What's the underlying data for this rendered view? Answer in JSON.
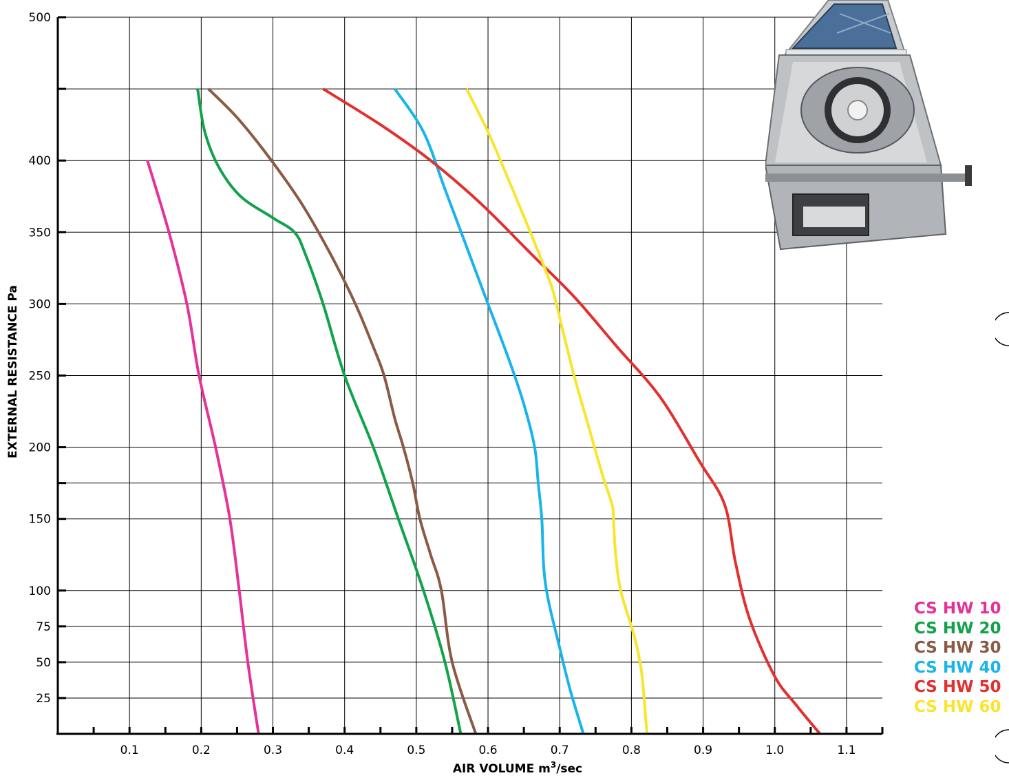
{
  "chart_data": {
    "type": "line",
    "title": "",
    "xlabel": "AIR VOLUME m",
    "xlabel_sup": "3",
    "xlabel_suffix": "/sec",
    "ylabel": "EXTERNAL RESISTANCE Pa",
    "xlim": [
      0.0,
      1.15
    ],
    "ylim": [
      0,
      500
    ],
    "grid": true,
    "x_ticks": [
      0.1,
      0.2,
      0.3,
      0.4,
      0.5,
      0.6,
      0.7,
      0.8,
      0.9,
      1.0,
      1.1
    ],
    "x_tick_labels": [
      "0.1",
      "0.2",
      "0.3",
      "0.4",
      "0.5",
      "0.6",
      "0.7",
      "0.8",
      "0.9",
      "1.0",
      "1.1"
    ],
    "y_ticks": [
      25,
      50,
      75,
      100,
      150,
      200,
      250,
      300,
      350,
      400,
      500
    ],
    "y_tick_labels": [
      "25",
      "50",
      "75",
      "100",
      "150",
      "200",
      "250",
      "300",
      "350",
      "400",
      "500"
    ],
    "legend_position": "bottom-right",
    "series": [
      {
        "name": "CS HW 10",
        "color": "#e5329a",
        "points": [
          [
            0.125,
            400
          ],
          [
            0.155,
            350
          ],
          [
            0.18,
            300
          ],
          [
            0.197,
            250
          ],
          [
            0.22,
            200
          ],
          [
            0.24,
            150
          ],
          [
            0.253,
            100
          ],
          [
            0.265,
            50
          ],
          [
            0.28,
            0
          ]
        ]
      },
      {
        "name": "CS HW 20",
        "color": "#10a34a",
        "points": [
          [
            0.195,
            450
          ],
          [
            0.205,
            420
          ],
          [
            0.225,
            395
          ],
          [
            0.255,
            375
          ],
          [
            0.3,
            360
          ],
          [
            0.33,
            350
          ],
          [
            0.345,
            335
          ],
          [
            0.37,
            300
          ],
          [
            0.4,
            250
          ],
          [
            0.44,
            200
          ],
          [
            0.475,
            150
          ],
          [
            0.51,
            100
          ],
          [
            0.54,
            50
          ],
          [
            0.562,
            0
          ]
        ]
      },
      {
        "name": "CS HW 30",
        "color": "#8a5a44",
        "points": [
          [
            0.21,
            450
          ],
          [
            0.25,
            430
          ],
          [
            0.295,
            402
          ],
          [
            0.34,
            370
          ],
          [
            0.38,
            335
          ],
          [
            0.415,
            300
          ],
          [
            0.44,
            270
          ],
          [
            0.455,
            250
          ],
          [
            0.47,
            220
          ],
          [
            0.482,
            200
          ],
          [
            0.495,
            175
          ],
          [
            0.505,
            150
          ],
          [
            0.52,
            125
          ],
          [
            0.535,
            100
          ],
          [
            0.55,
            50
          ],
          [
            0.583,
            0
          ]
        ]
      },
      {
        "name": "CS HW 40",
        "color": "#19b4ea",
        "points": [
          [
            0.47,
            450
          ],
          [
            0.51,
            420
          ],
          [
            0.54,
            380
          ],
          [
            0.57,
            340
          ],
          [
            0.6,
            300
          ],
          [
            0.63,
            260
          ],
          [
            0.65,
            230
          ],
          [
            0.665,
            200
          ],
          [
            0.67,
            175
          ],
          [
            0.675,
            150
          ],
          [
            0.68,
            105
          ],
          [
            0.7,
            60
          ],
          [
            0.715,
            30
          ],
          [
            0.733,
            0
          ]
        ]
      },
      {
        "name": "CS HW 50",
        "color": "#e2302e",
        "points": [
          [
            0.37,
            450
          ],
          [
            0.45,
            425
          ],
          [
            0.52,
            400
          ],
          [
            0.59,
            370
          ],
          [
            0.66,
            335
          ],
          [
            0.72,
            305
          ],
          [
            0.78,
            270
          ],
          [
            0.84,
            235
          ],
          [
            0.895,
            190
          ],
          [
            0.93,
            160
          ],
          [
            0.945,
            120
          ],
          [
            0.965,
            80
          ],
          [
            1.0,
            40
          ],
          [
            1.03,
            20
          ],
          [
            1.063,
            0
          ]
        ]
      },
      {
        "name": "CS HW 60",
        "color": "#f9e52d",
        "points": [
          [
            0.57,
            450
          ],
          [
            0.6,
            420
          ],
          [
            0.63,
            385
          ],
          [
            0.655,
            355
          ],
          [
            0.675,
            330
          ],
          [
            0.69,
            310
          ],
          [
            0.705,
            280
          ],
          [
            0.72,
            250
          ],
          [
            0.74,
            215
          ],
          [
            0.76,
            180
          ],
          [
            0.773,
            160
          ],
          [
            0.775,
            150
          ],
          [
            0.778,
            125
          ],
          [
            0.785,
            100
          ],
          [
            0.8,
            75
          ],
          [
            0.808,
            60
          ],
          [
            0.815,
            40
          ],
          [
            0.82,
            10
          ],
          [
            0.822,
            0
          ]
        ]
      }
    ]
  }
}
